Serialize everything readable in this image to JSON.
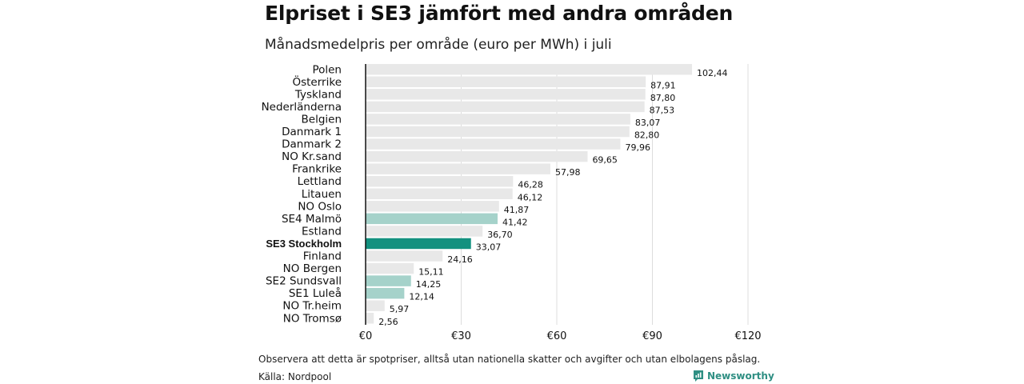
{
  "header": {
    "title": "Elpriset i SE3 jämfört med andra områden",
    "subtitle": "Månadsmedelpris per område (euro per MWh) i juli"
  },
  "footer": {
    "note": "Observera att detta är spotpriser, alltså utan nationella skatter och avgifter och utan elbolagens påslag.",
    "source": "Källa: Nordpool",
    "brand": "Newsworthy"
  },
  "colors": {
    "bar_default": "#e8e8e8",
    "bar_light_teal": "#a5d2ca",
    "bar_dark_teal": "#13917f",
    "brand": "#2f8f83"
  },
  "chart_data": {
    "type": "bar",
    "orientation": "horizontal",
    "title": "Elpriset i SE3 jämfört med andra områden",
    "subtitle": "Månadsmedelpris per område (euro per MWh) i juli",
    "xlim": [
      0,
      120
    ],
    "x_ticks": [
      "€0",
      "€30",
      "€60",
      "€90",
      "€120"
    ],
    "x_tick_values": [
      0,
      30,
      60,
      90,
      120
    ],
    "grid": true,
    "categories": [
      "Polen",
      "Österrike",
      "Tyskland",
      "Nederländerna",
      "Belgien",
      "Danmark  1",
      "Danmark  2",
      "NO Kr.sand",
      "Frankrike",
      "Lettland",
      "Litauen",
      "NO Oslo",
      "SE4  Malmö",
      "Estland",
      "SE3 Stockholm",
      "Finland",
      "NO Bergen",
      "SE2  Sundsvall",
      "SE1  Luleå",
      "NO Tr.heim",
      "NO Tromsø"
    ],
    "values": [
      102.44,
      87.91,
      87.8,
      87.53,
      83.07,
      82.8,
      79.96,
      69.65,
      57.98,
      46.28,
      46.12,
      41.87,
      41.42,
      36.7,
      33.07,
      24.16,
      15.11,
      14.25,
      12.14,
      5.97,
      2.56
    ],
    "value_labels": [
      "102,44",
      "87,91",
      "87,80",
      "87,53",
      "83,07",
      "82,80",
      "79,96",
      "69,65",
      "57,98",
      "46,28",
      "46,12",
      "41,87",
      "41,42",
      "36,70",
      "33,07",
      "24,16",
      "15,11",
      "14,25",
      "12,14",
      "5,97",
      "2,56"
    ],
    "highlight": [
      "none",
      "none",
      "none",
      "none",
      "none",
      "none",
      "none",
      "none",
      "none",
      "none",
      "none",
      "none",
      "light",
      "none",
      "dark",
      "none",
      "none",
      "light",
      "light",
      "none",
      "none"
    ]
  }
}
